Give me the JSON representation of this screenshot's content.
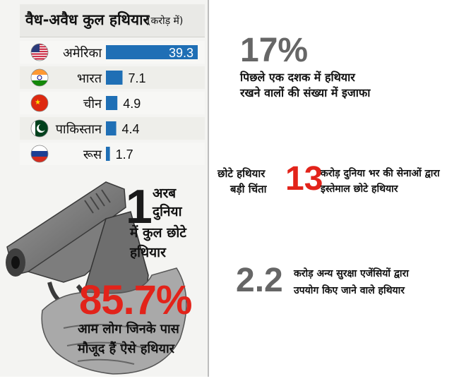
{
  "chart_data": {
    "type": "bar",
    "title": "वैध-अवैध कुल हथियार",
    "unit": "(करोड़ में)",
    "categories": [
      "अमेरिका",
      "भारत",
      "चीन",
      "पाकिस्तान",
      "रूस"
    ],
    "values": [
      39.3,
      7.1,
      4.9,
      4.4,
      1.7
    ],
    "value_labels": [
      "39.3",
      "7.1",
      "4.9",
      "4.4",
      "1.7"
    ],
    "flags": [
      "usa-flag-icon",
      "india-flag-icon",
      "china-flag-icon",
      "pakistan-flag-icon",
      "russia-flag-icon"
    ],
    "bar_color": "#1f6fb5",
    "xlim": [
      0,
      39.3
    ]
  },
  "stats": {
    "world": {
      "number": "1",
      "line1": "अरब",
      "line2": "दुनिया",
      "line3": "में कुल छोटे",
      "line4": "हथियार"
    },
    "civilian": {
      "number": "85.7%",
      "line1": "आम लोग जिनके पास",
      "line2": "मौजूद हैं ऐसे हथियार"
    },
    "increase": {
      "number": "17%",
      "line1": "पिछले एक दशक में हथियार",
      "line2": "रखने वालों की संख्या में इजाफा"
    },
    "concern": {
      "line1": "छोटे हथियार",
      "line2": "बड़ी चिंता"
    },
    "armies": {
      "number": "13",
      "line1": "करोड़ दुनिया भर की सेनाओं द्वारा",
      "line2": "इस्तेमाल छोटे हथियार"
    },
    "agencies": {
      "number": "2.2",
      "line1": "करोड़ अन्य सुरक्षा एजेंसियों द्वारा",
      "line2": "उपयोग किए जाने वाले हथियार"
    }
  },
  "colors": {
    "accent_red": "#e2231a",
    "grey_number": "#666666",
    "bar": "#1f6fb5"
  }
}
